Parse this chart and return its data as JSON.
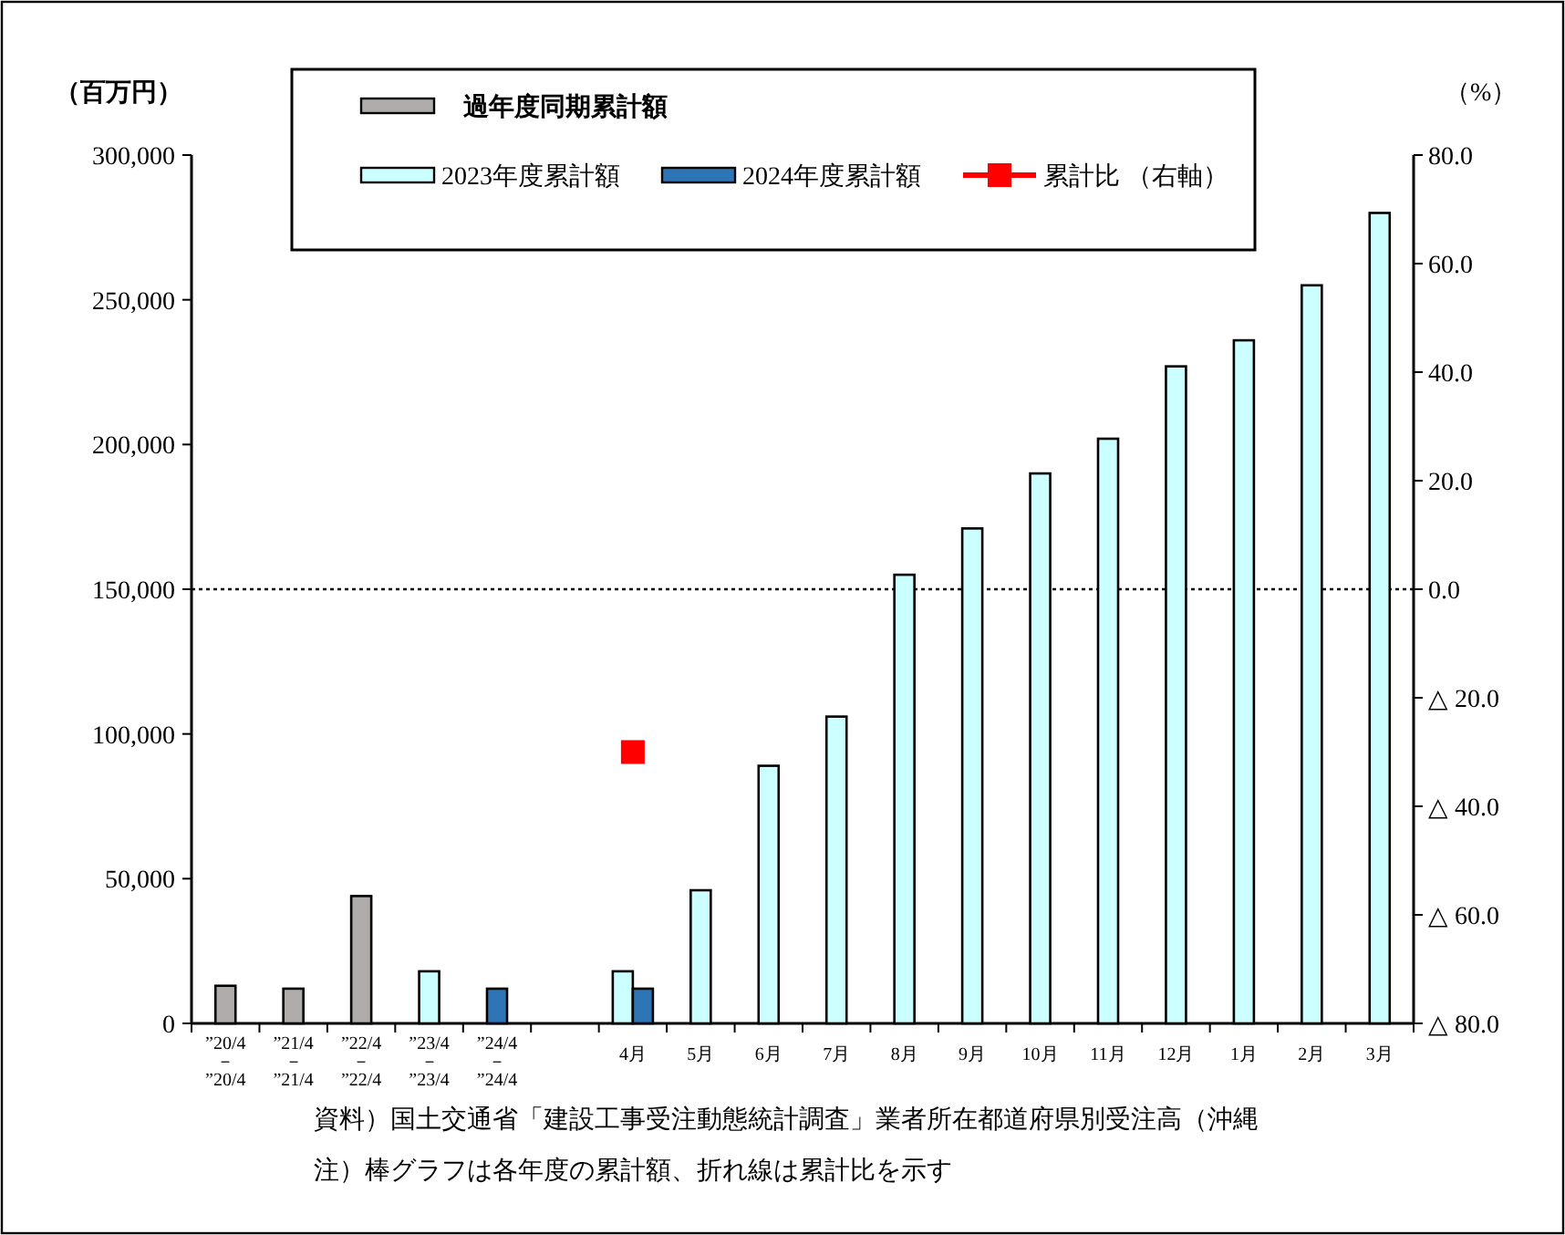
{
  "chart_data": {
    "type": "bar",
    "categories": [
      "”20/4\n－\n”20/4",
      "”21/4\n－\n”21/4",
      "”22/4\n－\n”22/4",
      "”23/4\n－\n”23/4",
      "”24/4\n－\n”24/4",
      null,
      "4月",
      "5月",
      "6月",
      "7月",
      "8月",
      "9月",
      "10月",
      "11月",
      "12月",
      "1月",
      "2月",
      "3月"
    ],
    "series": [
      {
        "name": "過年度同期累計額",
        "color": "#b0acac",
        "values": [
          13000,
          12000,
          44000,
          null,
          null,
          null,
          null,
          null,
          null,
          null,
          null,
          null,
          null,
          null,
          null,
          null,
          null,
          null
        ]
      },
      {
        "name": "2023年度累計額",
        "color": "#ccffff",
        "values": [
          null,
          null,
          null,
          18000,
          null,
          null,
          18000,
          46000,
          89000,
          106000,
          155000,
          171000,
          190000,
          202000,
          227000,
          236000,
          255000,
          280000
        ]
      },
      {
        "name": "2024年度累計額",
        "color": "#2e75b6",
        "values": [
          null,
          null,
          null,
          null,
          12000,
          null,
          12000,
          null,
          null,
          null,
          null,
          null,
          null,
          null,
          null,
          null,
          null,
          null
        ]
      },
      {
        "name": "累計比 （右軸）",
        "type": "line",
        "axis": "y2",
        "marker": "square",
        "color": "#ff0000",
        "values": [
          null,
          null,
          null,
          null,
          null,
          null,
          -30.0,
          null,
          null,
          null,
          null,
          null,
          null,
          null,
          null,
          null,
          null,
          null
        ]
      }
    ],
    "ylabel": "（百万円）",
    "y2label": "（%）",
    "ylim": [
      0,
      300000
    ],
    "yticks": [
      {
        "value": 0,
        "label": "0"
      },
      {
        "value": 50000,
        "label": "50,000"
      },
      {
        "value": 100000,
        "label": "100,000"
      },
      {
        "value": 150000,
        "label": "150,000"
      },
      {
        "value": 200000,
        "label": "200,000"
      },
      {
        "value": 250000,
        "label": "250,000"
      },
      {
        "value": 300000,
        "label": "300,000"
      }
    ],
    "y2lim": [
      -80,
      80
    ],
    "y2ticks": [
      {
        "value": -80,
        "label": "△ 80.0"
      },
      {
        "value": -60,
        "label": "△ 60.0"
      },
      {
        "value": -40,
        "label": "△ 40.0"
      },
      {
        "value": -20,
        "label": "△ 20.0"
      },
      {
        "value": 0,
        "label": "0.0"
      },
      {
        "value": 20,
        "label": "20.0"
      },
      {
        "value": 40,
        "label": "40.0"
      },
      {
        "value": 60,
        "label": "60.0"
      },
      {
        "value": 80,
        "label": "80.0"
      }
    ],
    "ref_lines": [
      {
        "axis": "y2",
        "value": 0,
        "line_style": "dotted",
        "color": "#000000"
      }
    ],
    "legend": "top",
    "grid": false,
    "annotations": [
      "資料）国土交通省「建設工事受注動態統計調査」業者所在都道府県別受注高（沖縄",
      "注）棒グラフは各年度の累計額、折れ線は累計比を示す"
    ]
  }
}
